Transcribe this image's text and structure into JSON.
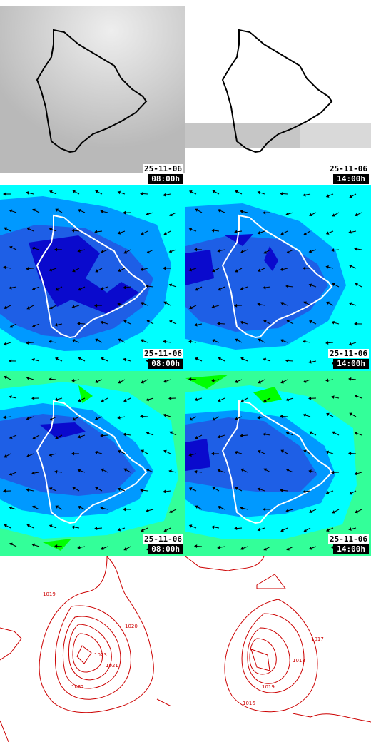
{
  "panels": [
    {
      "row": "cloud",
      "date": "25-11-06",
      "time": "08:00h"
    },
    {
      "row": "cloud",
      "date": "25-11-06",
      "time": "14:00h"
    },
    {
      "row": "humidity-low",
      "date": "25-11-06",
      "time": "08:00h"
    },
    {
      "row": "humidity-low",
      "date": "25-11-06",
      "time": "14:00h"
    },
    {
      "row": "humidity-mid",
      "date": "25-11-06",
      "time": "08:00h"
    },
    {
      "row": "humidity-mid",
      "date": "25-11-06",
      "time": "14:00h"
    },
    {
      "row": "pressure",
      "date": "",
      "time": ""
    },
    {
      "row": "pressure",
      "date": "",
      "time": ""
    }
  ],
  "pressure_labels_left": [
    "1019",
    "1020",
    "1023",
    "1021",
    "1022"
  ],
  "pressure_labels_right": [
    "1017",
    "1018",
    "1019",
    "1016"
  ],
  "colors": {
    "coast": "#ffffff",
    "cloud_bg": "#c8c8c8",
    "cyan": "#00ffff",
    "light_blue": "#0099ff",
    "blue": "#1e5fe6",
    "dark_blue": "#0a0acd",
    "green": "#33ff99",
    "bright_green": "#00ff00",
    "isobar": "#cc0000"
  }
}
